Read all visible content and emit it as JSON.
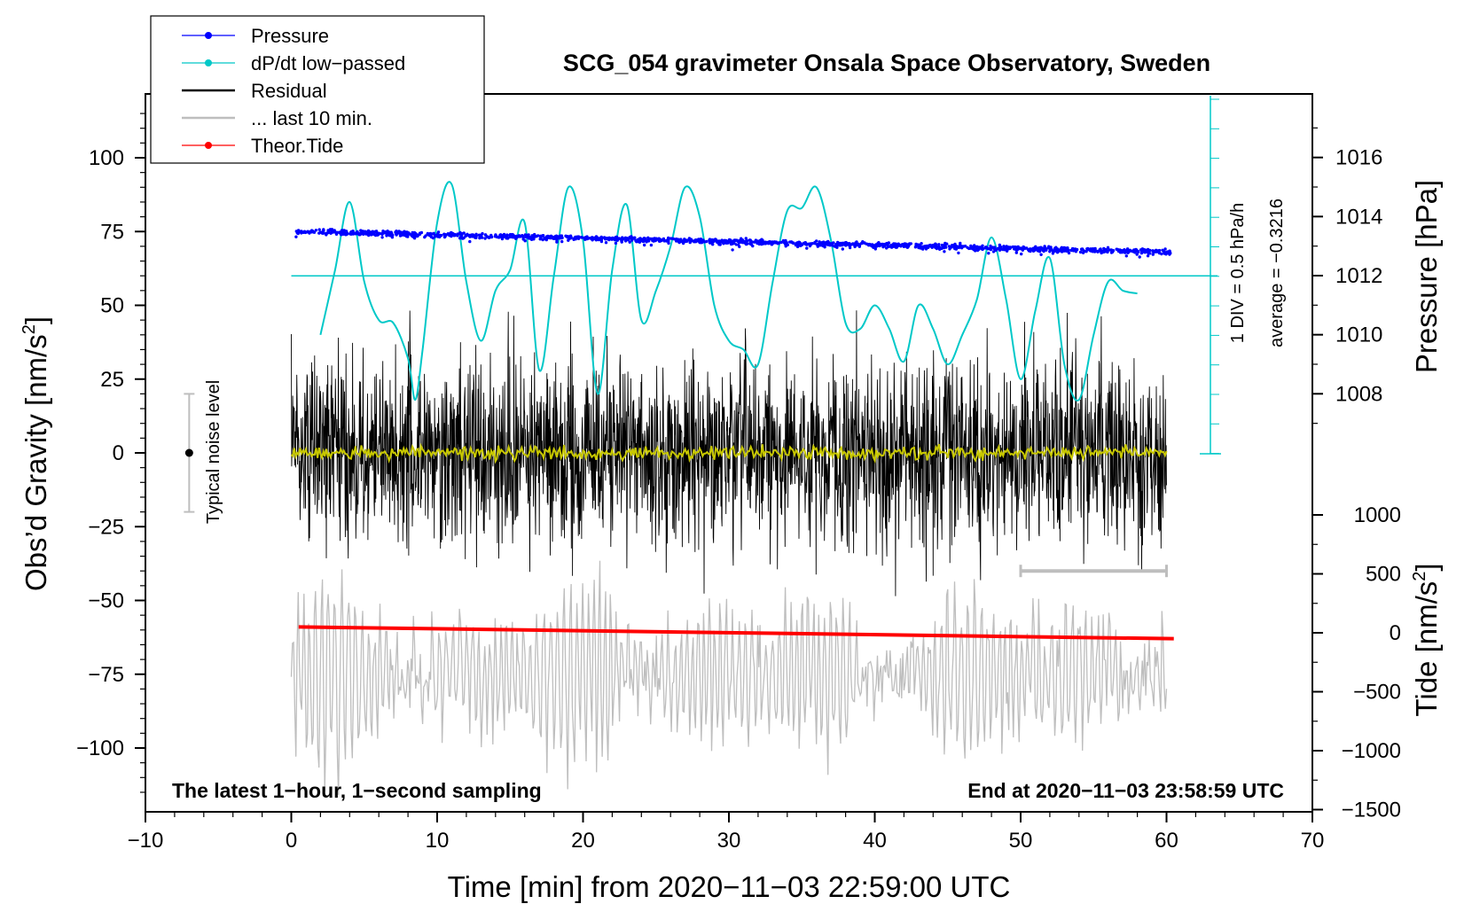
{
  "chart_data": {
    "type": "line",
    "title": "SCG_054 gravimeter Onsala Space Observatory, Sweden",
    "xlabel": "Time [min] from 2020−11−03 22:59:00 UTC",
    "ylabel_left": "Obs’d Gravity [nm/s",
    "ylabel_left_sup": "2",
    "ylabel_left_close": "]",
    "ylabel_right_pressure": "Pressure [hPa]",
    "ylabel_right_tide": "Tide [nm/s",
    "ylabel_right_tide_sup": "2",
    "ylabel_right_tide_close": "]",
    "xlim": [
      -10,
      70
    ],
    "ylim_gravity": [
      -120,
      120
    ],
    "x_ticks": [
      -10,
      0,
      10,
      20,
      30,
      40,
      50,
      60,
      70
    ],
    "x_tick_labels": [
      "−10",
      "0",
      "10",
      "20",
      "30",
      "40",
      "50",
      "60",
      "70"
    ],
    "gravity_ticks": [
      100,
      75,
      50,
      25,
      0,
      -25,
      -50,
      -75,
      -100
    ],
    "gravity_tick_labels": [
      "100",
      "75",
      "50",
      "25",
      "0",
      "−25",
      "−50",
      "−75",
      "−100"
    ],
    "pressure_ticks": [
      1016,
      1014,
      1012,
      1010,
      1008
    ],
    "pressure_tick_labels": [
      "1016",
      "1014",
      "1012",
      "1010",
      "1008"
    ],
    "tide_ticks": [
      1000,
      500,
      0,
      -500,
      -1000,
      -1500
    ],
    "tide_tick_labels": [
      "1000",
      "500",
      "0",
      "−500",
      "−1000",
      "−1500"
    ],
    "legend": {
      "position": "top-left",
      "entries": [
        {
          "label": "Pressure",
          "color": "#0000ff",
          "marker": true
        },
        {
          "label": "dP/dt low−passed",
          "color": "#00c8c8",
          "marker": true
        },
        {
          "label": "Residual",
          "color": "#000000",
          "marker": false
        },
        {
          "label": "... last 10 min.",
          "color": "#bebebe",
          "marker": false
        },
        {
          "label": "Theor.Tide",
          "color": "#ff0000",
          "marker": true
        }
      ]
    },
    "series": [
      {
        "name": "Pressure",
        "axis": "pressure",
        "color": "#0000ff",
        "x_range": [
          0.3,
          60.3
        ],
        "y_start": 1013.5,
        "y_end": 1012.8,
        "scatter": 0.15
      },
      {
        "name": "dP/dt low−passed",
        "axis": "gravity",
        "color": "#00c8c8",
        "x": [
          2,
          3,
          4,
          5,
          6,
          7,
          8,
          8.5,
          9,
          10,
          11,
          12,
          13,
          14,
          15,
          16,
          17,
          18,
          19,
          20,
          21,
          22,
          23,
          24,
          25,
          26,
          27,
          28,
          29,
          30,
          31,
          32,
          33,
          34,
          35,
          36,
          37,
          38,
          39,
          40,
          41,
          42,
          43,
          44,
          45,
          46,
          47,
          48,
          49,
          50,
          51,
          52,
          53,
          54,
          55,
          56,
          57,
          58
        ],
        "y": [
          40,
          62,
          85,
          58,
          45,
          44,
          32,
          18,
          35,
          78,
          91,
          58,
          38,
          55,
          62,
          78,
          28,
          60,
          90,
          72,
          20,
          62,
          84,
          45,
          55,
          70,
          90,
          80,
          50,
          38,
          35,
          30,
          58,
          82,
          83,
          90,
          72,
          44,
          42,
          50,
          42,
          31,
          50,
          42,
          30,
          40,
          52,
          73,
          52,
          25,
          48,
          66,
          30,
          18,
          40,
          58,
          55,
          54
        ]
      },
      {
        "name": "Residual",
        "axis": "gravity",
        "color": "#000000",
        "x_range": [
          0,
          60
        ],
        "amplitude_typical": 20,
        "amplitude_max": 50
      },
      {
        "name": "Residual (smoothed)",
        "axis": "gravity",
        "color": "#c8c800",
        "x_range": [
          0,
          60
        ],
        "y_level": 0
      },
      {
        "name": "... last 10 min.",
        "axis": "gravity",
        "color": "#bebebe",
        "x_range": [
          0,
          60
        ],
        "center": -75,
        "amplitude": 30
      },
      {
        "name": "Theor.Tide",
        "axis": "tide",
        "color": "#ff0000",
        "x_range": [
          0.5,
          60.5
        ],
        "y_start": 50,
        "y_end": -50
      }
    ],
    "dpdt_zero_level": 60,
    "dpdt_scale_label": "1 DIV = 0.5 hPa/h",
    "dpdt_average_label": "average = −0.3216",
    "noise_bar": {
      "x": -7,
      "low": -20,
      "high": 20,
      "center": 0,
      "label": "Typical noise level"
    },
    "last_10_min_bar": {
      "x_start": 50,
      "x_end": 60,
      "y": -40
    },
    "annotations": {
      "bottom_left": "The latest 1−hour, 1−second sampling",
      "bottom_right": "End at 2020−11−03 23:58:59 UTC"
    }
  }
}
